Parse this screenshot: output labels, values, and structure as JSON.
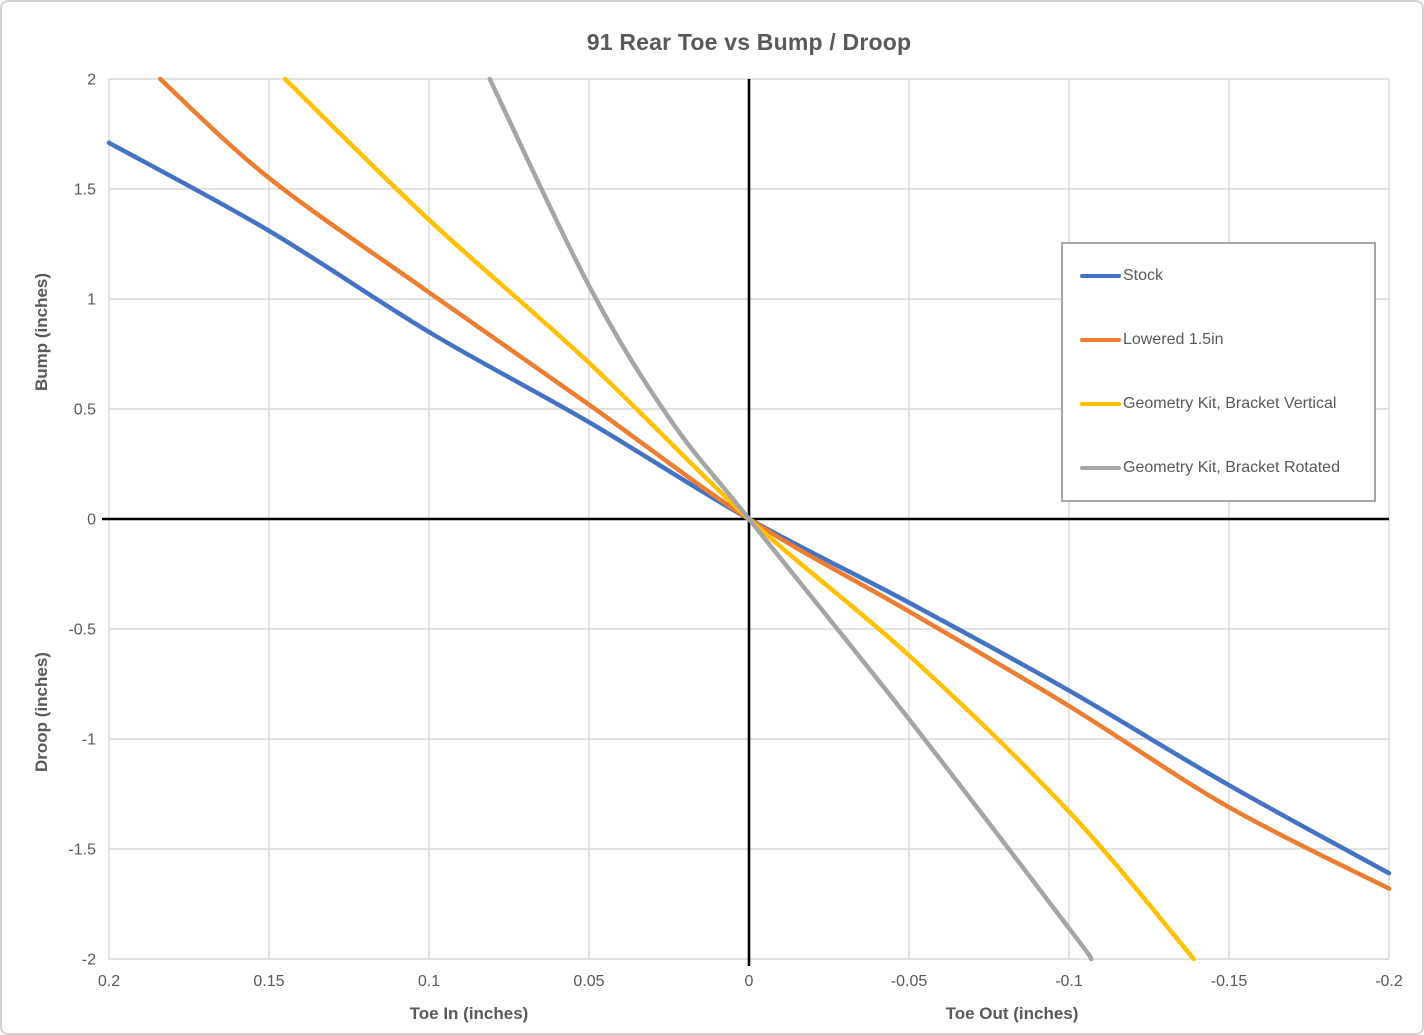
{
  "title": "91 Rear Toe vs Bump / Droop",
  "colors": {
    "text": "#595959",
    "gridline": "#d9d9d9",
    "axis_line": "#000000",
    "legend_border": "#a6a6a6",
    "background": "#ffffff",
    "outer_border": "#d2d2d2"
  },
  "chart_data": {
    "type": "line",
    "title": "91 Rear Toe vs Bump / Droop",
    "grid": true,
    "legend_position": "inside-right",
    "x_axis": {
      "label_left": "Toe In (inches)",
      "label_right": "Toe Out (inches)",
      "range": [
        0.2,
        -0.2
      ],
      "reversed": true,
      "ticks": [
        0.2,
        0.15,
        0.1,
        0.05,
        0,
        -0.05,
        -0.1,
        -0.15,
        -0.2
      ],
      "tick_labels": [
        "0.2",
        "0.15",
        "0.1",
        "0.05",
        "0",
        "-0.05",
        "-0.1",
        "-0.15",
        "-0.2"
      ]
    },
    "y_axis": {
      "label_top": "Bump (inches)",
      "label_bottom": "Droop (inches)",
      "range": [
        2,
        -2
      ],
      "ticks": [
        2,
        1.5,
        1,
        0.5,
        0,
        -0.5,
        -1,
        -1.5,
        -2
      ],
      "tick_labels": [
        "2",
        "1.5",
        "1",
        "0.5",
        "0",
        "-0.5",
        "-1",
        "-1.5",
        "-2"
      ]
    },
    "series": [
      {
        "name": "Stock",
        "color": "#4472c4",
        "points": [
          [
            0.2,
            1.71
          ],
          [
            0.15,
            1.31
          ],
          [
            0.1,
            0.85
          ],
          [
            0.05,
            0.44
          ],
          [
            0,
            0
          ],
          [
            -0.05,
            -0.38
          ],
          [
            -0.1,
            -0.78
          ],
          [
            -0.15,
            -1.21
          ],
          [
            -0.2,
            -1.61
          ]
        ]
      },
      {
        "name": "Lowered 1.5in",
        "color": "#ed7d31",
        "points": [
          [
            0.184,
            2
          ],
          [
            0.15,
            1.55
          ],
          [
            0.1,
            1.03
          ],
          [
            0.05,
            0.52
          ],
          [
            0,
            0
          ],
          [
            -0.05,
            -0.42
          ],
          [
            -0.1,
            -0.85
          ],
          [
            -0.15,
            -1.31
          ],
          [
            -0.2,
            -1.68
          ]
        ]
      },
      {
        "name": "Geometry Kit, Bracket Vertical",
        "color": "#ffc000",
        "points": [
          [
            0.145,
            2
          ],
          [
            0.1,
            1.36
          ],
          [
            0.05,
            0.71
          ],
          [
            0,
            0
          ],
          [
            -0.05,
            -0.62
          ],
          [
            -0.1,
            -1.33
          ],
          [
            -0.139,
            -2
          ]
        ]
      },
      {
        "name": "Geometry Kit, Bracket Rotated",
        "color": "#a5a5a5",
        "points": [
          [
            0.081,
            2
          ],
          [
            0.05,
            1.06
          ],
          [
            0.025,
            0.46
          ],
          [
            0,
            0
          ],
          [
            -0.05,
            -0.91
          ],
          [
            -0.1,
            -1.86
          ],
          [
            -0.107,
            -2
          ]
        ]
      }
    ]
  }
}
